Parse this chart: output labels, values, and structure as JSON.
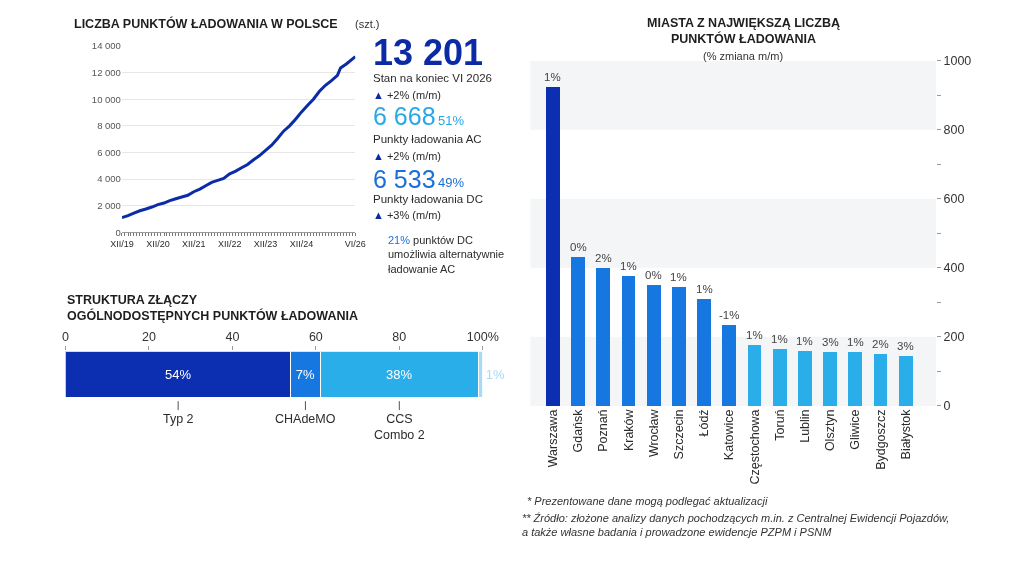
{
  "chart_data": [
    {
      "type": "line",
      "title": "LICZBA PUNKTÓW ŁADOWANIA W POLSCE",
      "subtitle": "(szt.)",
      "x": [
        "2019-12",
        "2020-02",
        "2020-04",
        "2020-06",
        "2020-08",
        "2020-10",
        "2020-12",
        "2021-02",
        "2021-04",
        "2021-06",
        "2021-08",
        "2021-10",
        "2021-12",
        "2022-02",
        "2022-04",
        "2022-06",
        "2022-08",
        "2022-10",
        "2022-12",
        "2023-02",
        "2023-04",
        "2023-06",
        "2023-08",
        "2023-10",
        "2023-12",
        "2024-02",
        "2024-04",
        "2024-06",
        "2024-08",
        "2024-10",
        "2024-12",
        "2025-02",
        "2025-04",
        "2025-06",
        "2025-08",
        "2025-10",
        "2025-12",
        "2026-01",
        "2026-03",
        "2026-06"
      ],
      "values": [
        1100,
        1250,
        1450,
        1620,
        1750,
        1900,
        2080,
        2200,
        2380,
        2520,
        2650,
        2780,
        3050,
        3250,
        3500,
        3750,
        3900,
        4050,
        4400,
        4600,
        4850,
        5100,
        5450,
        5770,
        6150,
        6550,
        7050,
        7600,
        8000,
        8500,
        9050,
        9550,
        10000,
        10600,
        11050,
        11400,
        11800,
        12350,
        12650,
        13200
      ],
      "color": "#0b2ca6",
      "xlim": [
        "2019-12",
        "2026-06"
      ],
      "ylim": [
        0,
        14000
      ],
      "xticks": [
        {
          "value": "2019-12",
          "label": "XII/19"
        },
        {
          "value": "2020-01",
          "label": null
        },
        {
          "value": "2020-02",
          "label": null
        },
        {
          "value": "2020-03",
          "label": null
        },
        {
          "value": "2020-04",
          "label": null
        },
        {
          "value": "2020-05",
          "label": null
        },
        {
          "value": "2020-06",
          "label": null
        },
        {
          "value": "2020-07",
          "label": null
        },
        {
          "value": "2020-08",
          "label": null
        },
        {
          "value": "2020-09",
          "label": null
        },
        {
          "value": "2020-10",
          "label": null
        },
        {
          "value": "2020-11",
          "label": null
        },
        {
          "value": "2020-12",
          "label": "XII/20"
        },
        {
          "value": "2021-01",
          "label": null
        },
        {
          "value": "2021-02",
          "label": null
        },
        {
          "value": "2021-03",
          "label": null
        },
        {
          "value": "2021-04",
          "label": null
        },
        {
          "value": "2021-05",
          "label": null
        },
        {
          "value": "2021-06",
          "label": null
        },
        {
          "value": "2021-07",
          "label": null
        },
        {
          "value": "2021-08",
          "label": null
        },
        {
          "value": "2021-09",
          "label": null
        },
        {
          "value": "2021-10",
          "label": null
        },
        {
          "value": "2021-11",
          "label": null
        },
        {
          "value": "2021-12",
          "label": "XII/21"
        },
        {
          "value": "2022-01",
          "label": null
        },
        {
          "value": "2022-02",
          "label": null
        },
        {
          "value": "2022-03",
          "label": null
        },
        {
          "value": "2022-04",
          "label": null
        },
        {
          "value": "2022-05",
          "label": null
        },
        {
          "value": "2022-06",
          "label": null
        },
        {
          "value": "2022-07",
          "label": null
        },
        {
          "value": "2022-08",
          "label": null
        },
        {
          "value": "2022-09",
          "label": null
        },
        {
          "value": "2022-10",
          "label": null
        },
        {
          "value": "2022-11",
          "label": null
        },
        {
          "value": "2022-12",
          "label": "XII/22"
        },
        {
          "value": "2023-01",
          "label": null
        },
        {
          "value": "2023-02",
          "label": null
        },
        {
          "value": "2023-03",
          "label": null
        },
        {
          "value": "2023-04",
          "label": null
        },
        {
          "value": "2023-05",
          "label": null
        },
        {
          "value": "2023-06",
          "label": null
        },
        {
          "value": "2023-07",
          "label": null
        },
        {
          "value": "2023-08",
          "label": null
        },
        {
          "value": "2023-09",
          "label": null
        },
        {
          "value": "2023-10",
          "label": null
        },
        {
          "value": "2023-11",
          "label": null
        },
        {
          "value": "2023-12",
          "label": "XII/23"
        },
        {
          "value": "2024-01",
          "label": null
        },
        {
          "value": "2024-02",
          "label": null
        },
        {
          "value": "2024-03",
          "label": null
        },
        {
          "value": "2024-04",
          "label": null
        },
        {
          "value": "2024-05",
          "label": null
        },
        {
          "value": "2024-06",
          "label": null
        },
        {
          "value": "2024-07",
          "label": null
        },
        {
          "value": "2024-08",
          "label": null
        },
        {
          "value": "2024-09",
          "label": null
        },
        {
          "value": "2024-10",
          "label": null
        },
        {
          "value": "2024-11",
          "label": null
        },
        {
          "value": "2024-12",
          "label": "XII/24"
        },
        {
          "value": "2025-01",
          "label": null
        },
        {
          "value": "2025-02",
          "label": null
        },
        {
          "value": "2025-03",
          "label": null
        },
        {
          "value": "2025-04",
          "label": null
        },
        {
          "value": "2025-05",
          "label": null
        },
        {
          "value": "2025-06",
          "label": null
        },
        {
          "value": "2025-07",
          "label": null
        },
        {
          "value": "2025-08",
          "label": null
        },
        {
          "value": "2025-09",
          "label": null
        },
        {
          "value": "2025-10",
          "label": null
        },
        {
          "value": "2025-11",
          "label": null
        },
        {
          "value": "2025-12",
          "label": null
        },
        {
          "value": "2026-01",
          "label": null
        },
        {
          "value": "2026-02",
          "label": null
        },
        {
          "value": "2026-03",
          "label": null
        },
        {
          "value": "2026-04",
          "label": null
        },
        {
          "value": "2026-05",
          "label": null
        },
        {
          "value": "2026-06",
          "label": "VI/26"
        }
      ],
      "yticks": [
        0,
        {
          "value": 2000,
          "label": "2 000"
        },
        {
          "value": 4000,
          "label": "4 000"
        },
        {
          "value": 6000,
          "label": "6 000"
        },
        {
          "value": 8000,
          "label": "8 000"
        },
        {
          "value": 10000,
          "label": "10 000"
        },
        {
          "value": 12000,
          "label": "12 000"
        },
        {
          "value": 14000,
          "label": "14 000"
        }
      ],
      "grid": "y"
    },
    {
      "type": "other",
      "annotations": [
        "13 201",
        "Stan na koniec VI 2026",
        "▲ +2% (m/m)",
        "6 668",
        "51%",
        "Punkty ładowania AC",
        "▲ +2% (m/m)",
        "6 533",
        "49%",
        "Punkty ładowania DC",
        "▲ +3% (m/m)",
        "21% punktów DC\numożliwia alternatywnie\nładowanie AC"
      ]
    },
    {
      "type": "bar",
      "orientation": "horizontal",
      "stacked": true,
      "title": "STRUKTURA ZŁĄCZY\nOGÓLNODOSTĘPNYCH PUNKTÓW ŁADOWANIA",
      "categories": [
        null
      ],
      "series": [
        {
          "name": "Typ 2",
          "color": "#0b2fb0",
          "values": [
            54
          ],
          "value_labels": [
            "54%"
          ]
        },
        {
          "name": "CHAdeMO",
          "color": "#1677e0",
          "values": [
            7
          ],
          "value_labels": [
            "7%"
          ]
        },
        {
          "name": "CCS\nCombo 2",
          "color": "#2aaeea",
          "values": [
            38
          ],
          "value_labels": [
            "38%"
          ]
        },
        {
          "color": "#a9dbf5",
          "values": [
            1
          ],
          "value_labels": [
            "1%"
          ]
        }
      ],
      "xlim": [
        0,
        100
      ],
      "xticks": [
        0,
        20,
        40,
        60,
        80,
        {
          "value": 100,
          "label": "100%"
        }
      ]
    },
    {
      "type": "bar",
      "title": "MIASTA Z NAJWIĘKSZĄ LICZBĄ\nPUNKTÓW ŁADOWANIA",
      "subtitle": "(% zmiana m/m)",
      "categories": [
        "Warszawa",
        "Gdańsk",
        "Poznań",
        "Kraków",
        "Wrocław",
        "Szczecin",
        "Łódź",
        "Katowice",
        "Częstochowa",
        "Toruń",
        "Lublin",
        "Olsztyn",
        "Gliwice",
        "Bydgoszcz",
        "Białystok"
      ],
      "values": [
        925,
        430,
        400,
        375,
        350,
        345,
        310,
        235,
        175,
        165,
        158,
        157,
        155,
        150,
        145
      ],
      "colors": [
        "#0b2fb0",
        "#1677e0",
        "#1677e0",
        "#1677e0",
        "#1677e0",
        "#1677e0",
        "#1677e0",
        "#1677e0",
        "#2aaeea",
        "#2aaeea",
        "#2aaeea",
        "#2aaeea",
        "#2aaeea",
        "#2aaeea",
        "#2aaeea"
      ],
      "ylim": [
        0,
        1000
      ],
      "yticks": [
        0,
        {
          "value": 100,
          "label": null
        },
        200,
        {
          "value": 300,
          "label": null
        },
        400,
        {
          "value": 500,
          "label": null
        },
        600,
        {
          "value": 700,
          "label": null
        },
        800,
        {
          "value": 900,
          "label": null
        },
        1000
      ],
      "bands": [
        {
          "axis": "y",
          "from": 0,
          "to": 200,
          "color": "#f4f5f7"
        },
        {
          "axis": "y",
          "from": 400,
          "to": 600,
          "color": "#f4f5f7"
        },
        {
          "axis": "y",
          "from": 800,
          "to": 1000,
          "color": "#f4f5f7"
        }
      ],
      "annotations": [
        {
          "text": "1%",
          "x": "Warszawa",
          "y": 925
        },
        {
          "text": "0%",
          "x": "Gdańsk",
          "y": 430
        },
        {
          "text": "2%",
          "x": "Poznań",
          "y": 400
        },
        {
          "text": "1%",
          "x": "Kraków",
          "y": 375
        },
        {
          "text": "0%",
          "x": "Wrocław",
          "y": 350
        },
        {
          "text": "1%",
          "x": "Szczecin",
          "y": 345
        },
        {
          "text": "1%",
          "x": "Łódź",
          "y": 310
        },
        {
          "text": "-1%",
          "x": "Katowice",
          "y": 235
        },
        {
          "text": "1%",
          "x": "Częstochowa",
          "y": 175
        },
        {
          "text": "1%",
          "x": "Toruń",
          "y": 165
        },
        {
          "text": "1%",
          "x": "Lublin",
          "y": 158
        },
        {
          "text": "3%",
          "x": "Olsztyn",
          "y": 157
        },
        {
          "text": "1%",
          "x": "Gliwice",
          "y": 155
        },
        {
          "text": "2%",
          "x": "Bydgoszcz",
          "y": 150
        },
        {
          "text": "3%",
          "x": "Białystok",
          "y": 145
        },
        "* Prezentowane dane mogą podlegać aktualizacji",
        "** Źródło: złożone analizy danych pochodzących m.in. z Centralnej Ewidencji Pojazdów,\na także własne badania i prowadzone ewidencje PZPM i PSNM"
      ]
    }
  ]
}
